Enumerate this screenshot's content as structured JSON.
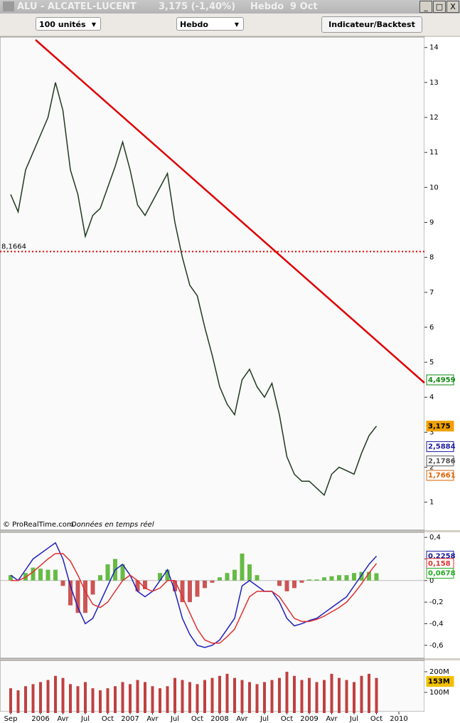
{
  "window": {
    "symbol": "ALU - ALCATEL-LUCENT",
    "quote": "3,175 (-1,40%)",
    "period": "Hebdo",
    "date": "9 Oct"
  },
  "toolbar": {
    "units": "100 unités",
    "period": "Hebdo",
    "button": "Indicateur/Backtest"
  },
  "footer": {
    "source": "© ProRealTime.com",
    "note": "Données en temps réel"
  },
  "chart_data": [
    {
      "type": "line",
      "categories": [
        "Sep",
        null,
        null,
        null,
        "2006",
        null,
        null,
        "Avr",
        null,
        null,
        "Jul",
        null,
        null,
        "Oct",
        null,
        null,
        "2007",
        null,
        null,
        "Avr",
        null,
        null,
        "Jul",
        null,
        null,
        "Oct",
        null,
        null,
        "2008",
        null,
        null,
        "Avr",
        null,
        null,
        "Jul",
        null,
        null,
        "Oct",
        null,
        null,
        "2009",
        null,
        null,
        "Avr",
        null,
        null,
        "Jul",
        null,
        null,
        "Oct",
        null,
        null,
        "2010"
      ],
      "series": [
        {
          "color": "#1e3a1e",
          "values": [
            9.8,
            9.3,
            10.5,
            11.0,
            11.5,
            12.0,
            13.0,
            12.2,
            10.5,
            9.8,
            8.6,
            9.2,
            9.4,
            10.0,
            10.6,
            11.3,
            10.5,
            9.5,
            9.2,
            9.6,
            10.0,
            10.4,
            9.0,
            8.0,
            7.2,
            6.9,
            6.0,
            5.2,
            4.3,
            3.8,
            3.5,
            4.5,
            4.8,
            4.3,
            4.0,
            4.4,
            3.5,
            2.3,
            1.8,
            1.6,
            1.6,
            1.4,
            1.2,
            1.8,
            2.0,
            1.9,
            1.8,
            2.4,
            2.9,
            3.175,
            null,
            null,
            null
          ]
        }
      ],
      "ylim": [
        0.2,
        14.3
      ],
      "yticks": [
        1,
        2,
        3,
        4,
        5,
        6,
        7,
        8,
        9,
        10,
        11,
        12,
        13,
        14
      ],
      "hline": {
        "value": 8.1664,
        "label": "8,1664",
        "color": "#e00000"
      },
      "annotations": [
        {
          "value": 4.4959,
          "label": "4,4959",
          "color": "#118811"
        },
        {
          "value": 3.175,
          "label": "3,175",
          "color": "#f0a000"
        },
        {
          "value": 2.5884,
          "label": "2,5884",
          "color": "#1a1aa0"
        },
        {
          "value": 2.1786,
          "label": "2,1786",
          "color": "#555555"
        },
        {
          "value": 1.7661,
          "label": "1,7661",
          "color": "#e06000"
        }
      ]
    },
    {
      "type": "macd",
      "series": [
        {
          "color": "#1f1fbf",
          "values": [
            0.05,
            0.0,
            0.1,
            0.2,
            0.25,
            0.3,
            0.35,
            0.2,
            -0.05,
            -0.25,
            -0.4,
            -0.35,
            -0.2,
            -0.05,
            0.1,
            0.15,
            0.05,
            -0.1,
            -0.15,
            -0.1,
            0.0,
            0.1,
            -0.1,
            -0.35,
            -0.5,
            -0.6,
            -0.62,
            -0.6,
            -0.55,
            -0.45,
            -0.35,
            -0.05,
            0.0,
            -0.05,
            -0.1,
            -0.1,
            -0.2,
            -0.35,
            -0.42,
            -0.4,
            -0.37,
            -0.35,
            -0.3,
            -0.25,
            -0.2,
            -0.15,
            -0.05,
            0.05,
            0.15,
            0.2258,
            null,
            null,
            null
          ]
        },
        {
          "color": "#e03030",
          "values": [
            0.0,
            0.0,
            0.03,
            0.08,
            0.14,
            0.2,
            0.25,
            0.25,
            0.18,
            0.05,
            -0.1,
            -0.22,
            -0.25,
            -0.2,
            -0.1,
            0.0,
            0.05,
            0.0,
            -0.07,
            -0.1,
            -0.07,
            0.0,
            0.0,
            -0.15,
            -0.3,
            -0.45,
            -0.55,
            -0.58,
            -0.58,
            -0.52,
            -0.45,
            -0.3,
            -0.15,
            -0.1,
            -0.1,
            -0.1,
            -0.15,
            -0.25,
            -0.35,
            -0.38,
            -0.38,
            -0.36,
            -0.33,
            -0.29,
            -0.25,
            -0.2,
            -0.12,
            -0.03,
            0.07,
            0.158,
            null,
            null,
            null
          ]
        }
      ],
      "histogram": {
        "colors": [
          "#66bb44",
          "#cc5555"
        ],
        "values": [
          0.05,
          0.0,
          0.07,
          0.12,
          0.11,
          0.1,
          0.1,
          -0.05,
          -0.23,
          -0.3,
          -0.3,
          -0.13,
          0.05,
          0.15,
          0.2,
          0.15,
          0.0,
          -0.1,
          -0.08,
          0.0,
          0.07,
          0.1,
          -0.1,
          -0.2,
          -0.2,
          -0.15,
          -0.07,
          -0.02,
          0.03,
          0.07,
          0.1,
          0.25,
          0.15,
          0.05,
          0.0,
          0.0,
          -0.05,
          -0.1,
          -0.07,
          -0.02,
          0.01,
          0.01,
          0.03,
          0.04,
          0.05,
          0.05,
          0.07,
          0.08,
          0.08,
          0.0678,
          null,
          null,
          null
        ]
      },
      "ylim": [
        -0.72,
        0.447
      ],
      "yticks": [
        {
          "value": 0.4,
          "label": "0,4"
        },
        {
          "value": 0.2,
          "label": "0,2"
        },
        0,
        {
          "value": -0.2,
          "label": "-0,2"
        },
        {
          "value": -0.4,
          "label": "-0,4"
        },
        {
          "value": -0.6,
          "label": "-0,6"
        }
      ],
      "annotations": [
        {
          "value": 0.2258,
          "label": "0,2258",
          "color": "#1a1aa0"
        },
        {
          "value": 0.158,
          "label": "0,158",
          "color": "#e03030"
        },
        {
          "value": 0.0678,
          "label": "0,0678",
          "color": "#22aa22"
        }
      ]
    },
    {
      "type": "bar",
      "color": "#c04040",
      "values": [
        120000000,
        110000000,
        130000000,
        140000000,
        150000000,
        160000000,
        180000000,
        170000000,
        140000000,
        130000000,
        150000000,
        120000000,
        110000000,
        120000000,
        130000000,
        150000000,
        140000000,
        160000000,
        150000000,
        130000000,
        120000000,
        130000000,
        170000000,
        160000000,
        150000000,
        140000000,
        160000000,
        170000000,
        180000000,
        190000000,
        170000000,
        160000000,
        150000000,
        140000000,
        150000000,
        160000000,
        170000000,
        200000000,
        180000000,
        160000000,
        170000000,
        150000000,
        160000000,
        190000000,
        170000000,
        160000000,
        150000000,
        180000000,
        190000000,
        170000000,
        null,
        null,
        null
      ],
      "ylim": [
        0,
        255000000
      ],
      "yticks": [
        {
          "value": 200000000,
          "label": "200M"
        },
        {
          "value": 100000000,
          "label": "100M"
        }
      ],
      "annotations": [
        {
          "value": 153000000,
          "label": "153M",
          "color": "#f0c000"
        }
      ]
    }
  ]
}
